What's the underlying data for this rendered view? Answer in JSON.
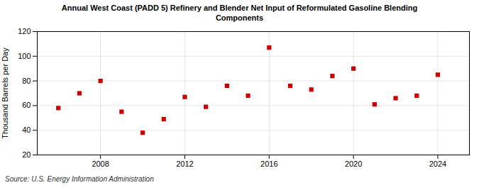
{
  "chart_data": {
    "type": "scatter",
    "title": "Annual West Coast (PADD 5) Refinery and Blender Net Input of Reformulated Gasoline Blending\nComponents",
    "ylabel": "Thousand Barrels per Day",
    "source": "Source: U.S. Energy Information Administration",
    "x": [
      2006,
      2007,
      2008,
      2009,
      2010,
      2011,
      2012,
      2013,
      2014,
      2015,
      2016,
      2017,
      2018,
      2019,
      2020,
      2021,
      2022,
      2023,
      2024
    ],
    "values": [
      58,
      70,
      80,
      55,
      38,
      49,
      67,
      59,
      76,
      68,
      107,
      76,
      73,
      84,
      90,
      61,
      66,
      68,
      85
    ],
    "color": "#cc0000",
    "marker": "square",
    "xlim": [
      2005.0,
      2025.5
    ],
    "ylim": [
      20,
      120
    ],
    "xticks": [
      2008,
      2012,
      2016,
      2020,
      2024
    ],
    "yticks": [
      20,
      40,
      60,
      80,
      100,
      120
    ],
    "grid": true
  }
}
